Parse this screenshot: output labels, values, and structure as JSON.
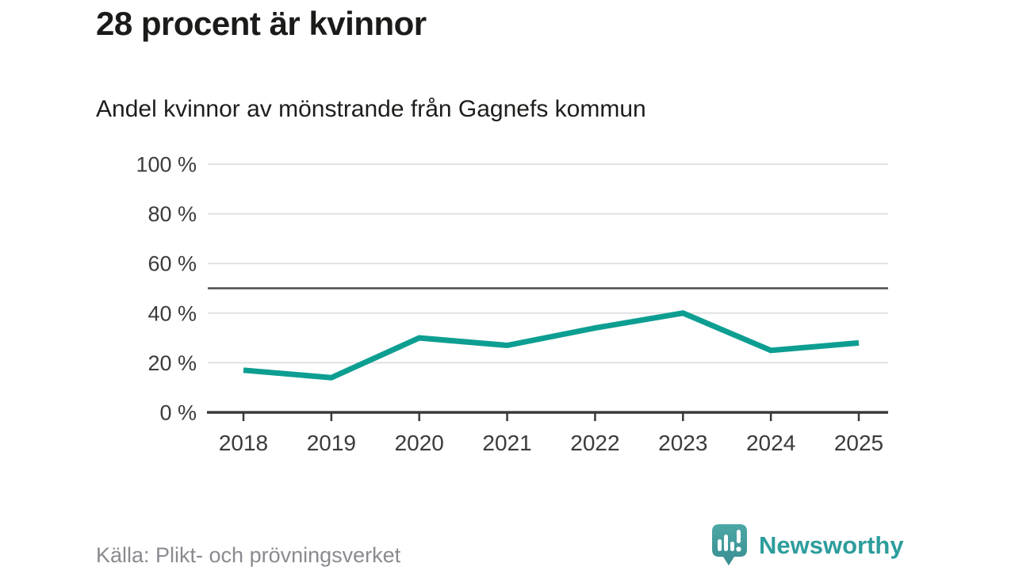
{
  "title": "28 procent är kvinnor",
  "subtitle": "Andel kvinnor av mönstrande från Gagnefs kommun",
  "source": "Källa: Plikt- och prövningsverket",
  "brand": {
    "name": "Newsworthy",
    "logo_icon": "newsworthy-speech-bubble-bar-chart-icon",
    "color": "#2d9d9c",
    "icon_color": "#46a2a0"
  },
  "chart_data": {
    "type": "line",
    "title": "28 procent är kvinnor",
    "subtitle": "Andel kvinnor av mönstrande från Gagnefs kommun",
    "x": [
      2018,
      2019,
      2020,
      2021,
      2022,
      2023,
      2024,
      2025
    ],
    "series": [
      {
        "name": "andel-kvinnor",
        "values": [
          17,
          14,
          30,
          27,
          34,
          40,
          25,
          28
        ],
        "color": "#0d9e92"
      }
    ],
    "reference_line": {
      "value": 50,
      "color": "#4d4d4d"
    },
    "ylim": [
      0,
      100
    ],
    "yticks": [
      0,
      20,
      40,
      60,
      80,
      100
    ],
    "ytick_format": "{v} %",
    "grid": true,
    "gridline_color": "#e2e2e2",
    "axis_color": "#3a3a3a",
    "legend": false
  }
}
